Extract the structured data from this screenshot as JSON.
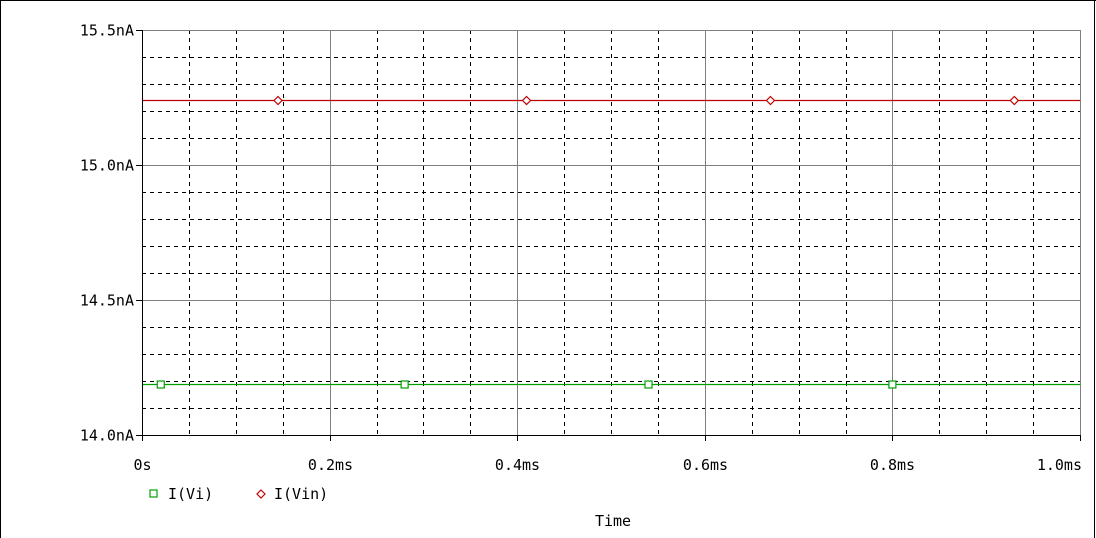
{
  "chart_data": {
    "type": "line",
    "xlabel": "Time",
    "ylabel": "",
    "xlim": [
      0,
      1.0
    ],
    "ylim": [
      14.0,
      15.5
    ],
    "x_unit": "ms",
    "y_unit": "nA",
    "x_ticks": [
      0,
      0.2,
      0.4,
      0.6,
      0.8,
      1.0
    ],
    "x_tick_labels": [
      "0s",
      "0.2ms",
      "0.4ms",
      "0.6ms",
      "0.8ms",
      "1.0ms"
    ],
    "y_ticks": [
      14.0,
      14.5,
      15.0,
      15.5
    ],
    "y_tick_labels": [
      "14.0nA",
      "14.5nA",
      "15.0nA",
      "15.5nA"
    ],
    "grid": true,
    "legend_position": "bottom-left",
    "series": [
      {
        "name": "I(Vi)",
        "color": "#00a000",
        "marker": "square",
        "x": [
          0,
          1.0
        ],
        "y": [
          14.19,
          14.19
        ],
        "marker_x": [
          0.02,
          0.28,
          0.54,
          0.8
        ]
      },
      {
        "name": "I(Vin)",
        "color": "#c00000",
        "marker": "diamond",
        "x": [
          0,
          1.0
        ],
        "y": [
          15.24,
          15.24
        ],
        "marker_x": [
          0.145,
          0.41,
          0.67,
          0.93
        ]
      }
    ]
  }
}
